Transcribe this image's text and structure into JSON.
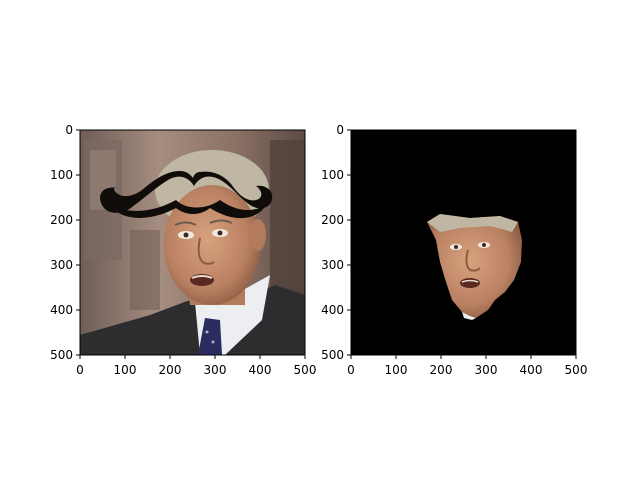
{
  "figure": {
    "background": "#ffffff"
  },
  "chart_data": [
    {
      "type": "image",
      "name": "left-panel",
      "content": "face photo with a black mustache overlay",
      "xlim": [
        0,
        500
      ],
      "ylim": [
        500,
        0
      ],
      "xticks": [
        "0",
        "100",
        "200",
        "300",
        "400",
        "500"
      ],
      "yticks": [
        "0",
        "100",
        "200",
        "300",
        "400",
        "500"
      ]
    },
    {
      "type": "image",
      "name": "right-panel",
      "content": "masked face cut-out on black background",
      "xlim": [
        0,
        500
      ],
      "ylim": [
        500,
        0
      ],
      "xticks": [
        "0",
        "100",
        "200",
        "300",
        "400",
        "500"
      ],
      "yticks": [
        "0",
        "100",
        "200",
        "300",
        "400",
        "500"
      ]
    }
  ],
  "colors": {
    "mustache": "#100c0a",
    "mask_background": "#000000",
    "skin": "#c9926f",
    "hair": "#bfb7a4",
    "suit": "#2d2d2f",
    "shirt": "#eceef2",
    "tie": "#2a2b5e",
    "backdrop": "#8a6f62"
  }
}
